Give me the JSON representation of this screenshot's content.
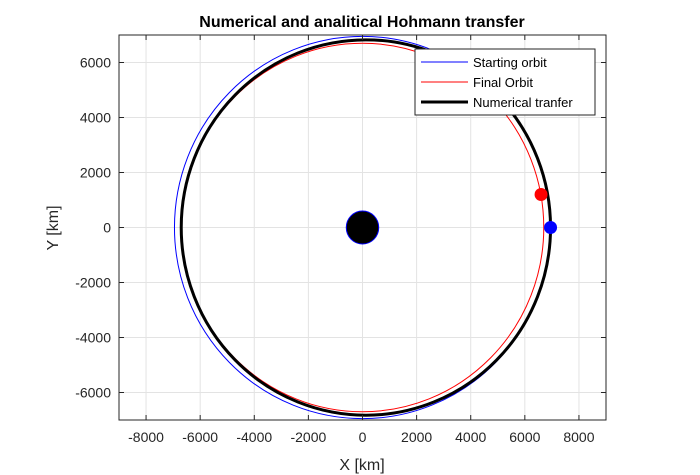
{
  "chart_data": {
    "type": "line",
    "title": "Numerical and analitical Hohmann transfer",
    "xlabel": "X [km]",
    "ylabel": "Y [km]",
    "xlim": [
      -9000,
      9000
    ],
    "ylim": [
      -7000,
      7000
    ],
    "xticks": [
      -8000,
      -6000,
      -4000,
      -2000,
      0,
      2000,
      4000,
      6000,
      8000
    ],
    "yticks": [
      -6000,
      -4000,
      -2000,
      0,
      2000,
      4000,
      6000
    ],
    "xtick_labels": [
      "-8000",
      "-6000",
      "-4000",
      "-2000",
      "0",
      "2000",
      "4000",
      "6000",
      "8000"
    ],
    "ytick_labels": [
      "-6000",
      "-4000",
      "-2000",
      "0",
      "2000",
      "4000",
      "6000"
    ],
    "grid": true,
    "legend_position": "top-right",
    "series": [
      {
        "name": "Starting orbit",
        "kind": "ellipse",
        "color": "#0000ff",
        "center": [
          0,
          0
        ],
        "a": 6950,
        "b": 6950
      },
      {
        "name": "Final Orbit",
        "kind": "ellipse",
        "color": "#ff0000",
        "center": [
          0,
          0
        ],
        "a": 6700,
        "b": 6700
      },
      {
        "name": "Numerical tranfer",
        "kind": "ellipse",
        "color": "#000000",
        "center": [
          125,
          0
        ],
        "a": 6825,
        "b": 6825
      }
    ],
    "markers": [
      {
        "color": "#ff0000",
        "x": 6600,
        "y": 1200
      },
      {
        "color": "#0000ff",
        "x": 6950,
        "y": 0
      }
    ],
    "central_body": {
      "color": "#000000",
      "edge_color": "#0000ff",
      "x": 0,
      "y": 0,
      "r": 600
    }
  }
}
